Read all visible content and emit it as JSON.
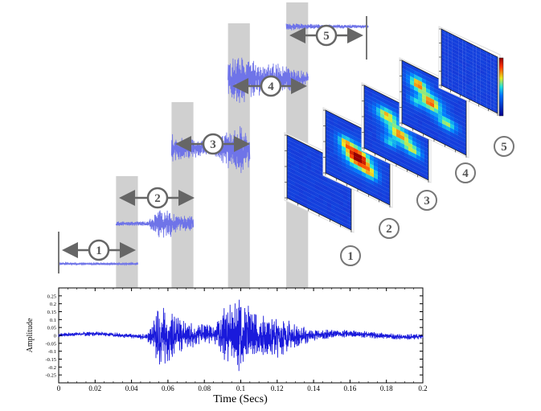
{
  "chart_data": {
    "type": "line",
    "xlabel": "Time (Secs)",
    "ylabel": "Amplitude",
    "xlim": [
      0,
      0.2
    ],
    "ylim": [
      -0.3,
      0.3
    ],
    "x_ticks": [
      "0",
      "0.02",
      "0.04",
      "0.06",
      "0.08",
      "0.1",
      "0.12",
      "0.14",
      "0.16",
      "0.18",
      "0.2"
    ],
    "y_ticks": [
      "0.25",
      "0.2",
      "0.15",
      "0.1",
      "0.05",
      "0",
      "-0.05",
      "-0.1",
      "-0.15",
      "-0.2",
      "-0.25"
    ],
    "envelope": {
      "x": [
        0,
        0.02,
        0.04,
        0.048,
        0.05,
        0.055,
        0.06,
        0.065,
        0.07,
        0.08,
        0.085,
        0.09,
        0.095,
        0.1,
        0.105,
        0.11,
        0.115,
        0.12,
        0.125,
        0.13,
        0.14,
        0.15,
        0.16,
        0.17,
        0.18,
        0.19,
        0.2
      ],
      "amplitude": [
        0.015,
        0.015,
        0.015,
        0.02,
        0.05,
        0.2,
        0.2,
        0.12,
        0.1,
        0.08,
        0.05,
        0.17,
        0.2,
        0.25,
        0.18,
        0.15,
        0.13,
        0.14,
        0.12,
        0.08,
        0.04,
        0.03,
        0.025,
        0.025,
        0.02,
        0.02,
        0.02
      ]
    },
    "highlight_windows": [
      [
        0.0315,
        0.0435
      ],
      [
        0.062,
        0.074
      ],
      [
        0.093,
        0.105
      ],
      [
        0.125,
        0.137
      ]
    ]
  },
  "segments": [
    {
      "label": "1"
    },
    {
      "label": "2"
    },
    {
      "label": "3"
    },
    {
      "label": "4"
    },
    {
      "label": "5"
    }
  ],
  "colors": {
    "signal": "#1a1adb",
    "segment_signal": "#6f74e8",
    "window_fill": "#c8c8c8",
    "arrow": "#666666",
    "heatmap_low": "#1a2fd4"
  }
}
